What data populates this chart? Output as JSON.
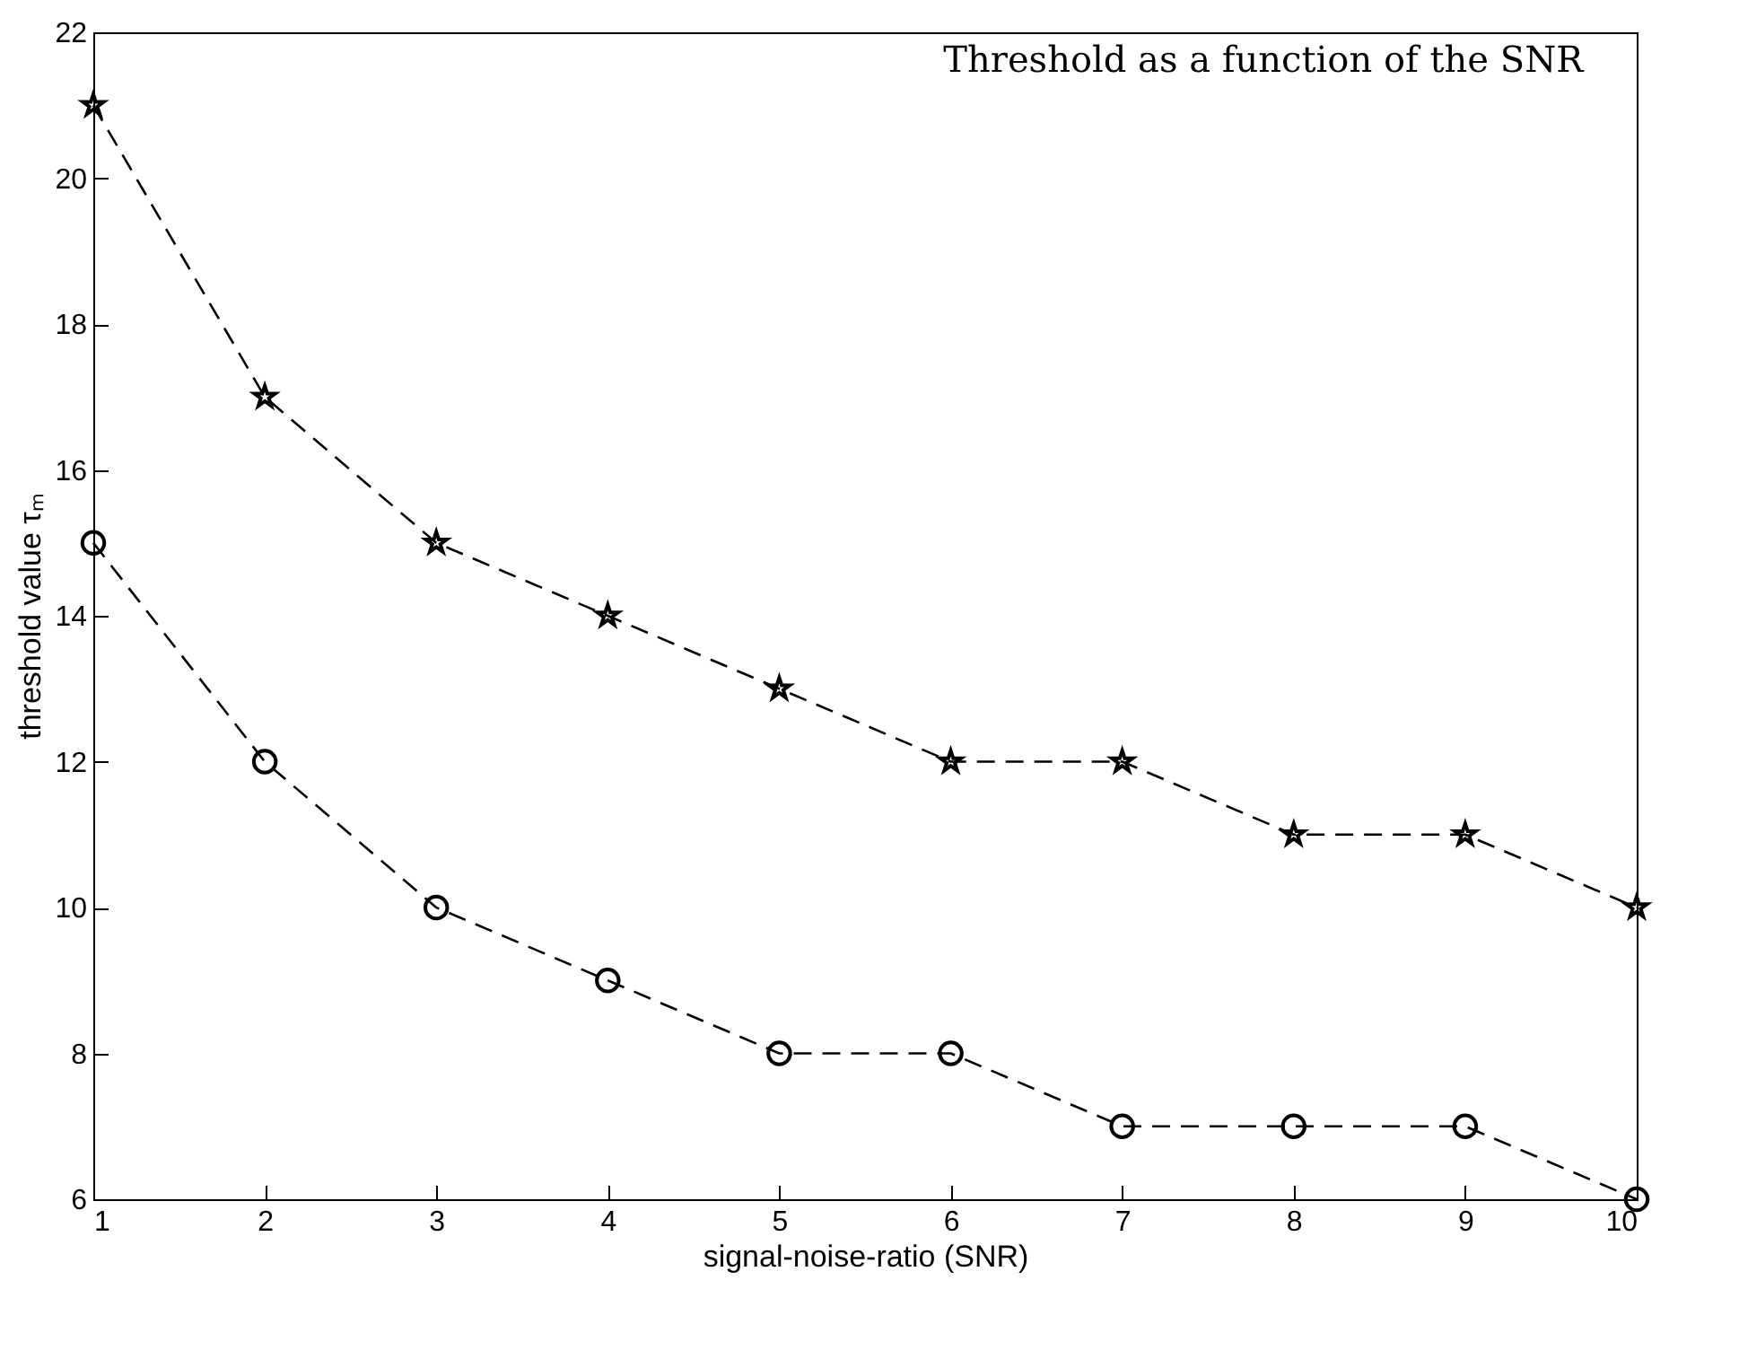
{
  "chart_data": {
    "type": "line",
    "title": "Threshold as a function of the SNR",
    "xlabel": "signal-noise-ratio (SNR)",
    "ylabel": "threshold value τₘ",
    "x": [
      1,
      2,
      3,
      4,
      5,
      6,
      7,
      8,
      9,
      10
    ],
    "series": [
      {
        "color": "#000000",
        "marker": "star",
        "line_style": "dashed",
        "values": [
          21,
          17,
          15,
          14,
          13,
          12,
          12,
          11,
          11,
          10
        ]
      },
      {
        "color": "#000000",
        "marker": "circle",
        "line_style": "dashed",
        "values": [
          15,
          12,
          10,
          9,
          8,
          8,
          7,
          7,
          7,
          6
        ]
      }
    ],
    "xlim": [
      1,
      10
    ],
    "xticks": [
      1,
      2,
      3,
      4,
      5,
      6,
      7,
      8,
      9,
      10
    ],
    "ylim": [
      6,
      22
    ],
    "yticks": [
      6,
      8,
      10,
      12,
      14,
      16,
      18,
      20,
      22
    ],
    "grid": false
  }
}
